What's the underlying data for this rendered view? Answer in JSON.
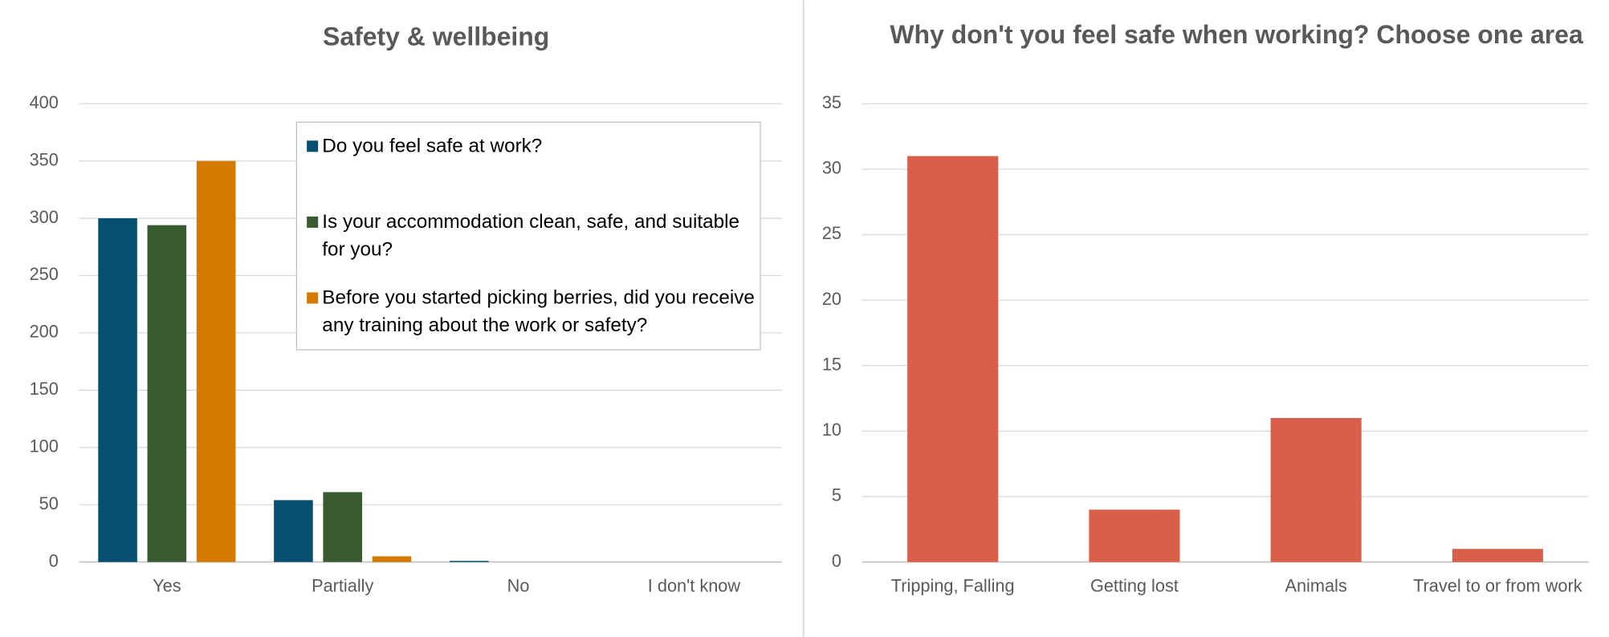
{
  "chart_data": [
    {
      "type": "bar",
      "title": "Safety & wellbeing",
      "categories": [
        "Yes",
        "Partially",
        "No",
        "I don't know"
      ],
      "series": [
        {
          "name": "Do you feel safe at work?",
          "color": "#064f70",
          "values": [
            300,
            54,
            1,
            0
          ]
        },
        {
          "name": "Is your accommodation clean, safe, and suitable for you?",
          "color": "#375a2f",
          "values": [
            294,
            61,
            0,
            0
          ]
        },
        {
          "name": "Before you started picking berries, did you receive any training about the work or safety?",
          "color": "#d57a00",
          "values": [
            350,
            5,
            0,
            0
          ]
        }
      ],
      "ylim": [
        0,
        400
      ],
      "yticks": [
        0,
        50,
        100,
        150,
        200,
        250,
        300,
        350,
        400
      ],
      "grid": true,
      "legend": "upper right"
    },
    {
      "type": "bar",
      "title": "Why don't you feel safe when working? Choose one area",
      "categories": [
        "Tripping, Falling",
        "Getting lost",
        "Animals",
        "Travel to or from work"
      ],
      "values": [
        31,
        4,
        11,
        1
      ],
      "color": "#d95f4b",
      "ylim": [
        0,
        35
      ],
      "yticks": [
        0,
        5,
        10,
        15,
        20,
        25,
        30,
        35
      ],
      "grid": true
    }
  ]
}
